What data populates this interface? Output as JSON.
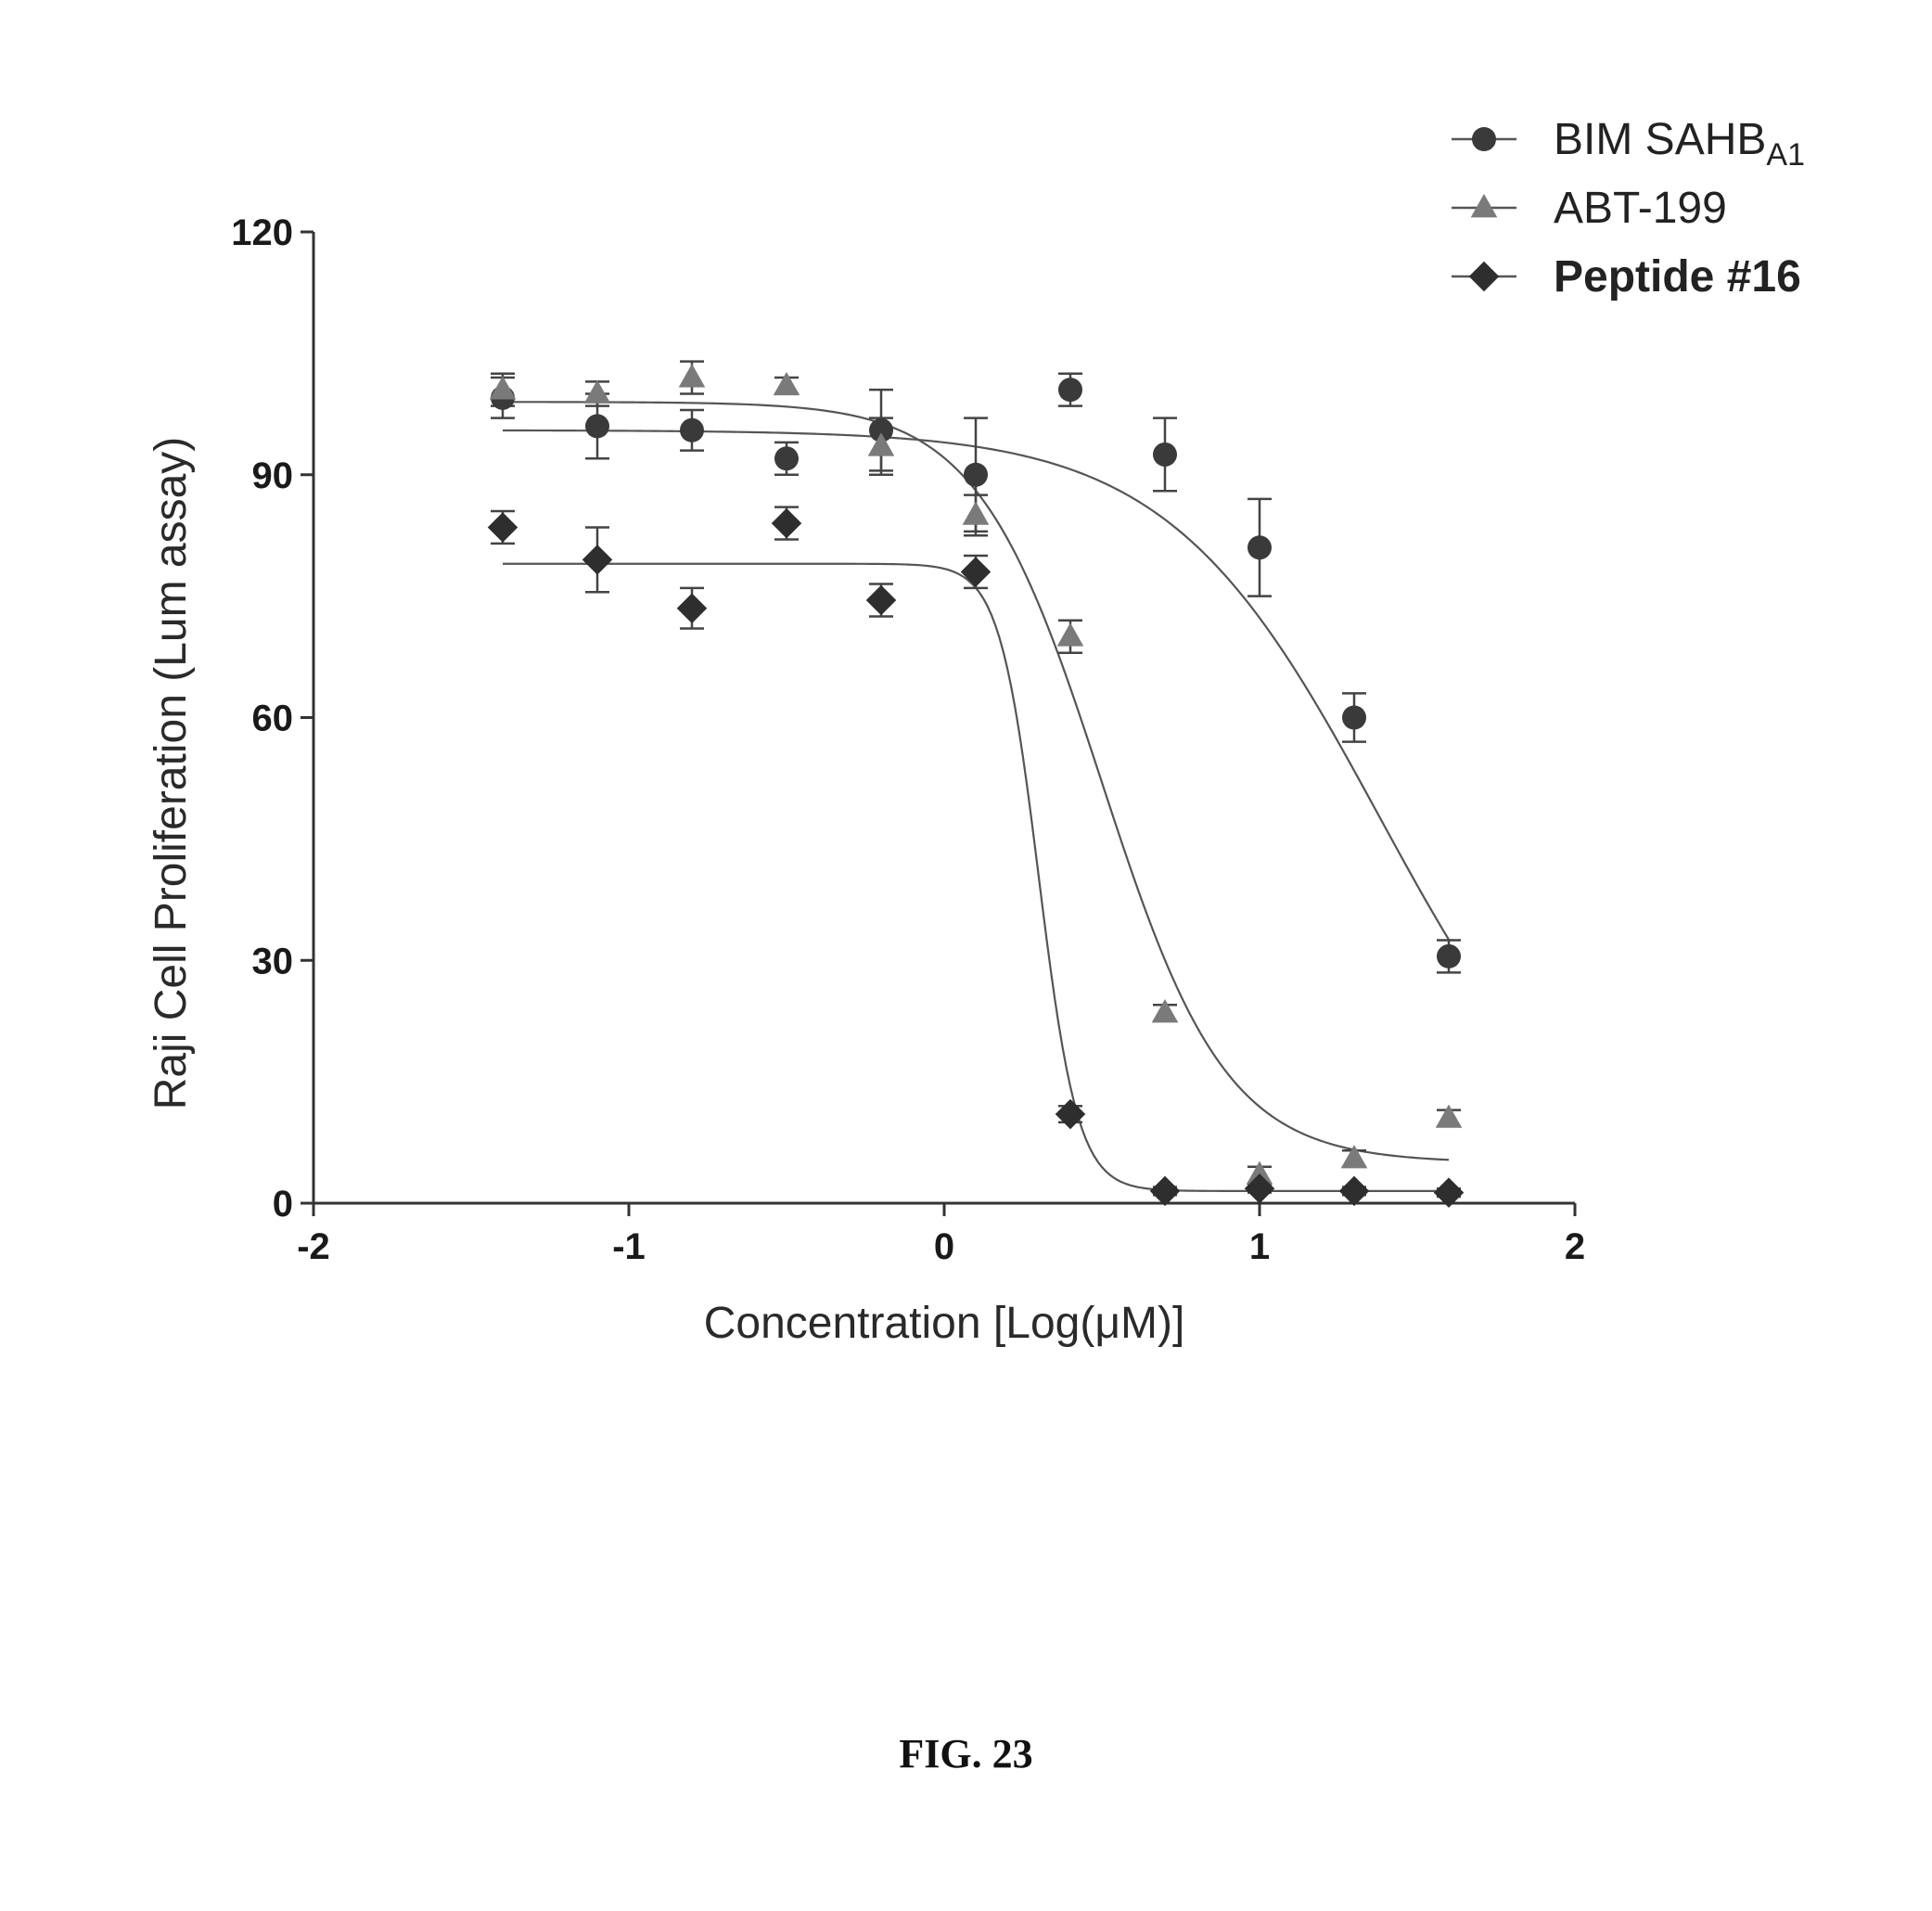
{
  "figure": {
    "caption": "FIG. 23"
  },
  "chart_data": {
    "type": "scatter",
    "xlabel": "Concentration [Log(μM)]",
    "ylabel": "Raji Cell Proliferation (Lum assay)",
    "xlim": [
      -2,
      2
    ],
    "ylim": [
      0,
      120
    ],
    "xticks": [
      "-2",
      "-1",
      "0",
      "1",
      "2"
    ],
    "yticks": [
      "0",
      "30",
      "60",
      "90",
      "120"
    ],
    "legend_position": "top-right",
    "series": [
      {
        "name": "BIM SAHB",
        "name_sub": "A1",
        "marker": "circle",
        "bold": false,
        "color": "#3a3a3a",
        "x": [
          -1.4,
          -1.1,
          -0.8,
          -0.5,
          -0.2,
          0.1,
          0.4,
          0.7,
          1.0,
          1.3,
          1.6
        ],
        "y": [
          99.5,
          96,
          95.5,
          92,
          95.5,
          90,
          100.5,
          92.5,
          81,
          60,
          30.5
        ],
        "error": [
          2.5,
          4,
          2.5,
          2,
          5,
          7,
          2,
          4.5,
          6,
          3,
          2
        ],
        "fit": {
          "top": 95.5,
          "bottom": 0,
          "logEC50": 1.38,
          "hill": 1.3
        }
      },
      {
        "name": "ABT-199",
        "name_sub": "",
        "marker": "triangle",
        "bold": false,
        "color": "#7a7a7a",
        "x": [
          -1.4,
          -1.1,
          -0.8,
          -0.5,
          -0.2,
          0.1,
          0.4,
          0.7,
          1.0,
          1.3,
          1.6
        ],
        "y": [
          100.5,
          100,
          102,
          101,
          93.5,
          85,
          70,
          23.5,
          3.5,
          5.5,
          10.5
        ],
        "error": [
          2,
          1.5,
          2,
          1,
          3.5,
          2.5,
          2,
          1,
          1,
          1,
          1
        ],
        "fit": {
          "top": 99,
          "bottom": 5,
          "logEC50": 0.5,
          "hill": 2.2
        }
      },
      {
        "name": "Peptide #16",
        "name_sub": "",
        "marker": "diamond",
        "bold": true,
        "color": "#2e2e2e",
        "x": [
          -1.4,
          -1.1,
          -0.8,
          -0.5,
          -0.2,
          0.1,
          0.4,
          0.7,
          1.0,
          1.3,
          1.6
        ],
        "y": [
          83.5,
          79.5,
          73.5,
          84,
          74.5,
          78,
          11,
          1.5,
          1.8,
          1.5,
          1.3
        ],
        "error": [
          2,
          4,
          2.5,
          2,
          2,
          2,
          1,
          0.5,
          0.5,
          0.5,
          0.5
        ],
        "fit": {
          "top": 79,
          "bottom": 1.5,
          "logEC50": 0.3,
          "hill": 7
        }
      }
    ]
  }
}
